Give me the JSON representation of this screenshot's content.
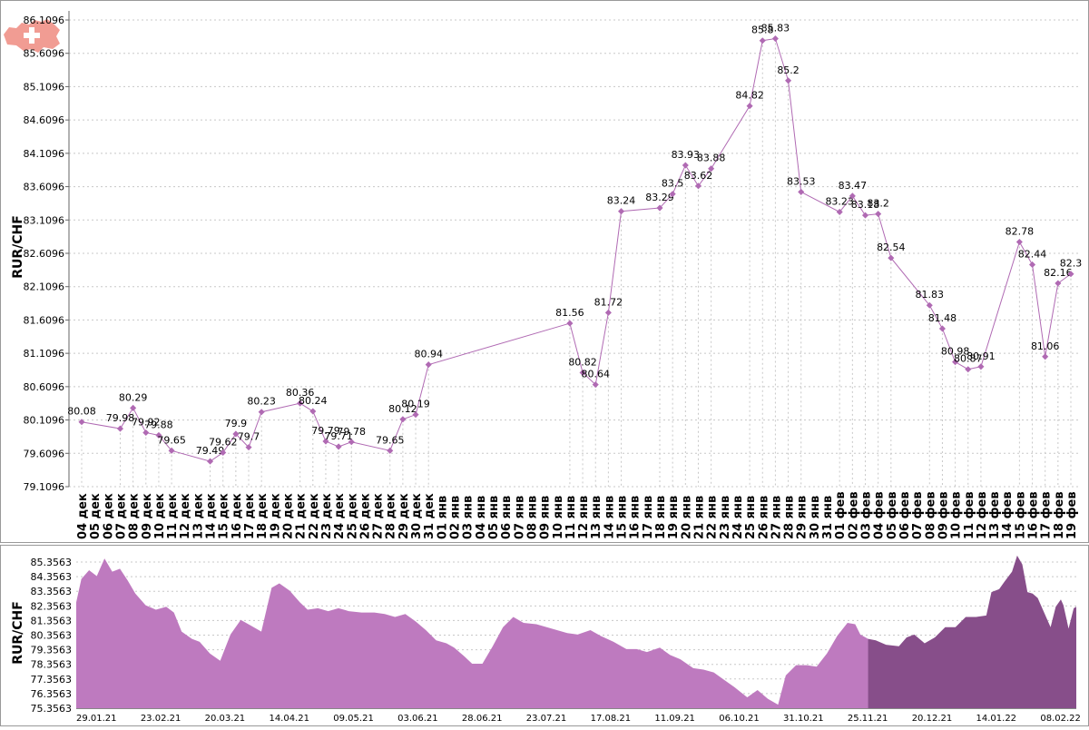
{
  "chart_data": [
    {
      "type": "line",
      "ylabel": "RUR/CHF",
      "yticks": [
        "79.1096",
        "79.6096",
        "80.1096",
        "80.6096",
        "81.1096",
        "81.6096",
        "82.1096",
        "82.6096",
        "83.1096",
        "83.6096",
        "84.1096",
        "84.6096",
        "85.1096",
        "85.6096",
        "86.1096"
      ],
      "ylim": [
        79.1096,
        86.1096
      ],
      "grid": true,
      "color": "#b06ab3",
      "x_labels": [
        "04 дек",
        "05 дек",
        "06 дек",
        "07 дек",
        "08 дек",
        "09 дек",
        "10 дек",
        "11 дек",
        "12 дек",
        "13 дек",
        "14 дек",
        "15 дек",
        "16 дек",
        "17 дек",
        "18 дек",
        "19 дек",
        "20 дек",
        "21 дек",
        "22 дек",
        "23 дек",
        "24 дек",
        "25 дек",
        "26 дек",
        "27 дек",
        "28 дек",
        "29 дек",
        "30 дек",
        "31 дек",
        "01 янв",
        "02 янв",
        "03 янв",
        "04 янв",
        "05 янв",
        "06 янв",
        "07 янв",
        "08 янв",
        "09 янв",
        "10 янв",
        "11 янв",
        "12 янв",
        "13 янв",
        "14 янв",
        "15 янв",
        "16 янв",
        "17 янв",
        "18 янв",
        "19 янв",
        "20 янв",
        "21 янв",
        "22 янв",
        "23 янв",
        "24 янв",
        "25 янв",
        "26 янв",
        "27 янв",
        "28 янв",
        "29 янв",
        "30 янв",
        "31 янв",
        "01 фев",
        "02 фев",
        "03 фев",
        "04 фев",
        "05 фев",
        "06 фев",
        "07 фев",
        "08 фев",
        "09 фев",
        "10 фев",
        "11 фев",
        "12 фев",
        "13 фев",
        "14 фев",
        "15 фев",
        "16 фев",
        "17 фев",
        "18 фев",
        "19 фев"
      ],
      "points": [
        {
          "x": "04 дек",
          "y": 80.08,
          "label": "80.08"
        },
        {
          "x": "07 дек",
          "y": 79.98,
          "label": "79.98"
        },
        {
          "x": "08 дек",
          "y": 80.29,
          "label": "80.29"
        },
        {
          "x": "09 дек",
          "y": 79.92,
          "label": "79.92"
        },
        {
          "x": "10 дек",
          "y": 79.88,
          "label": "79.88"
        },
        {
          "x": "11 дек",
          "y": 79.65,
          "label": "79.65"
        },
        {
          "x": "14 дек",
          "y": 79.49,
          "label": "79.49"
        },
        {
          "x": "15 дек",
          "y": 79.62,
          "label": "79.62"
        },
        {
          "x": "16 дек",
          "y": 79.9,
          "label": "79.9"
        },
        {
          "x": "17 дек",
          "y": 79.7,
          "label": "79.7"
        },
        {
          "x": "18 дек",
          "y": 80.23,
          "label": "80.23"
        },
        {
          "x": "21 дек",
          "y": 80.36,
          "label": "80.36"
        },
        {
          "x": "22 дек",
          "y": 80.24,
          "label": "80.24"
        },
        {
          "x": "23 дек",
          "y": 79.79,
          "label": "79.79"
        },
        {
          "x": "24 дек",
          "y": 79.71,
          "label": "79.71"
        },
        {
          "x": "25 дек",
          "y": 79.78,
          "label": "79.78"
        },
        {
          "x": "28 дек",
          "y": 79.65,
          "label": "79.65"
        },
        {
          "x": "29 дек",
          "y": 80.12,
          "label": "80.12"
        },
        {
          "x": "30 дек",
          "y": 80.19,
          "label": "80.19"
        },
        {
          "x": "31 дек",
          "y": 80.94,
          "label": "80.94"
        },
        {
          "x": "11 янв",
          "y": 81.56,
          "label": "81.56"
        },
        {
          "x": "12 янв",
          "y": 80.82,
          "label": "80.82"
        },
        {
          "x": "13 янв",
          "y": 80.64,
          "label": "80.64"
        },
        {
          "x": "14 янв",
          "y": 81.72,
          "label": "81.72"
        },
        {
          "x": "15 янв",
          "y": 83.24,
          "label": "83.24"
        },
        {
          "x": "18 янв",
          "y": 83.29,
          "label": "83.29"
        },
        {
          "x": "19 янв",
          "y": 83.5,
          "label": "83.5"
        },
        {
          "x": "20 янв",
          "y": 83.93,
          "label": "83.93"
        },
        {
          "x": "21 янв",
          "y": 83.62,
          "label": "83.62"
        },
        {
          "x": "22 янв",
          "y": 83.88,
          "label": "83.88"
        },
        {
          "x": "25 янв",
          "y": 84.82,
          "label": "84.82"
        },
        {
          "x": "26 янв",
          "y": 85.8,
          "label": "85.8"
        },
        {
          "x": "27 янв",
          "y": 85.83,
          "label": "85.83"
        },
        {
          "x": "28 янв",
          "y": 85.2,
          "label": "85.2"
        },
        {
          "x": "29 янв",
          "y": 83.53,
          "label": "83.53"
        },
        {
          "x": "01 фев",
          "y": 83.23,
          "label": "83.23"
        },
        {
          "x": "02 фев",
          "y": 83.47,
          "label": "83.47"
        },
        {
          "x": "03 фев",
          "y": 83.18,
          "label": "83.18"
        },
        {
          "x": "04 фев",
          "y": 83.2,
          "label": "83.2"
        },
        {
          "x": "05 фев",
          "y": 82.54,
          "label": "82.54"
        },
        {
          "x": "08 фев",
          "y": 81.83,
          "label": "81.83"
        },
        {
          "x": "09 фев",
          "y": 81.48,
          "label": "81.48"
        },
        {
          "x": "10 фев",
          "y": 80.98,
          "label": "80.98"
        },
        {
          "x": "11 фев",
          "y": 80.87,
          "label": "80.87"
        },
        {
          "x": "12 фев",
          "y": 80.91,
          "label": "80.91"
        },
        {
          "x": "15 фев",
          "y": 82.78,
          "label": "82.78"
        },
        {
          "x": "16 фев",
          "y": 82.44,
          "label": "82.44"
        },
        {
          "x": "17 фев",
          "y": 81.06,
          "label": "81.06"
        },
        {
          "x": "18 фев",
          "y": 82.16,
          "label": "82.16"
        },
        {
          "x": "19 фев",
          "y": 82.3,
          "label": "82.3"
        }
      ]
    },
    {
      "type": "area",
      "ylabel": "RUR/CHF",
      "yticks": [
        "75.3563",
        "76.3563",
        "77.3563",
        "78.3563",
        "79.3563",
        "80.3563",
        "81.3563",
        "82.3563",
        "83.3563",
        "84.3563",
        "85.3563"
      ],
      "ylim": [
        75.3563,
        85.8563
      ],
      "grid": true,
      "x_labels": [
        "29.01.21",
        "23.02.21",
        "20.03.21",
        "14.04.21",
        "09.05.21",
        "03.06.21",
        "28.06.21",
        "23.07.21",
        "17.08.21",
        "11.09.21",
        "06.10.21",
        "31.10.21",
        "25.11.21",
        "20.12.21",
        "14.01.22",
        "08.02.22"
      ],
      "colors": {
        "history": "#be7abf",
        "selected": "#874e8a"
      },
      "selected_from": "03.12.21",
      "series": [
        {
          "date": "29.01.21",
          "y": 82.6
        },
        {
          "date": "31.01.21",
          "y": 84.2
        },
        {
          "date": "03.02.21",
          "y": 84.8
        },
        {
          "date": "06.02.21",
          "y": 84.4
        },
        {
          "date": "09.02.21",
          "y": 85.6
        },
        {
          "date": "12.02.21",
          "y": 84.7
        },
        {
          "date": "15.02.21",
          "y": 84.9
        },
        {
          "date": "18.02.21",
          "y": 84.1
        },
        {
          "date": "21.02.21",
          "y": 83.2
        },
        {
          "date": "25.02.21",
          "y": 82.4
        },
        {
          "date": "01.03.21",
          "y": 82.1
        },
        {
          "date": "05.03.21",
          "y": 82.3
        },
        {
          "date": "08.03.21",
          "y": 81.9
        },
        {
          "date": "11.03.21",
          "y": 80.6
        },
        {
          "date": "15.03.21",
          "y": 80.1
        },
        {
          "date": "18.03.21",
          "y": 79.9
        },
        {
          "date": "22.03.21",
          "y": 79.1
        },
        {
          "date": "26.03.21",
          "y": 78.6
        },
        {
          "date": "30.03.21",
          "y": 80.4
        },
        {
          "date": "03.04.21",
          "y": 81.4
        },
        {
          "date": "07.04.21",
          "y": 81.0
        },
        {
          "date": "11.04.21",
          "y": 80.6
        },
        {
          "date": "15.04.21",
          "y": 83.6
        },
        {
          "date": "18.04.21",
          "y": 83.9
        },
        {
          "date": "22.04.21",
          "y": 83.4
        },
        {
          "date": "26.04.21",
          "y": 82.6
        },
        {
          "date": "29.04.21",
          "y": 82.1
        },
        {
          "date": "03.05.21",
          "y": 82.2
        },
        {
          "date": "07.05.21",
          "y": 82.0
        },
        {
          "date": "11.05.21",
          "y": 82.2
        },
        {
          "date": "15.05.21",
          "y": 82.0
        },
        {
          "date": "20.05.21",
          "y": 81.9
        },
        {
          "date": "25.05.21",
          "y": 81.9
        },
        {
          "date": "29.05.21",
          "y": 81.8
        },
        {
          "date": "02.06.21",
          "y": 81.6
        },
        {
          "date": "06.06.21",
          "y": 81.8
        },
        {
          "date": "10.06.21",
          "y": 81.3
        },
        {
          "date": "14.06.21",
          "y": 80.7
        },
        {
          "date": "18.06.21",
          "y": 80.0
        },
        {
          "date": "22.06.21",
          "y": 79.8
        },
        {
          "date": "25.06.21",
          "y": 79.5
        },
        {
          "date": "29.06.21",
          "y": 78.9
        },
        {
          "date": "02.07.21",
          "y": 78.4
        },
        {
          "date": "06.07.21",
          "y": 78.4
        },
        {
          "date": "10.07.21",
          "y": 79.6
        },
        {
          "date": "14.07.21",
          "y": 80.9
        },
        {
          "date": "18.07.21",
          "y": 81.6
        },
        {
          "date": "22.07.21",
          "y": 81.2
        },
        {
          "date": "27.07.21",
          "y": 81.1
        },
        {
          "date": "31.07.21",
          "y": 80.9
        },
        {
          "date": "04.08.21",
          "y": 80.7
        },
        {
          "date": "08.08.21",
          "y": 80.5
        },
        {
          "date": "12.08.21",
          "y": 80.4
        },
        {
          "date": "17.08.21",
          "y": 80.7
        },
        {
          "date": "21.08.21",
          "y": 80.3
        },
        {
          "date": "26.08.21",
          "y": 79.9
        },
        {
          "date": "31.08.21",
          "y": 79.4
        },
        {
          "date": "04.09.21",
          "y": 79.4
        },
        {
          "date": "08.09.21",
          "y": 79.2
        },
        {
          "date": "13.09.21",
          "y": 79.5
        },
        {
          "date": "17.09.21",
          "y": 79.0
        },
        {
          "date": "21.09.21",
          "y": 78.7
        },
        {
          "date": "26.09.21",
          "y": 78.1
        },
        {
          "date": "30.09.21",
          "y": 78.0
        },
        {
          "date": "04.10.21",
          "y": 77.8
        },
        {
          "date": "08.10.21",
          "y": 77.3
        },
        {
          "date": "12.10.21",
          "y": 76.8
        },
        {
          "date": "17.10.21",
          "y": 76.1
        },
        {
          "date": "21.10.21",
          "y": 76.6
        },
        {
          "date": "25.10.21",
          "y": 76.0
        },
        {
          "date": "29.10.21",
          "y": 75.6
        },
        {
          "date": "01.11.21",
          "y": 77.6
        },
        {
          "date": "05.11.21",
          "y": 78.3
        },
        {
          "date": "09.11.21",
          "y": 78.3
        },
        {
          "date": "13.11.21",
          "y": 78.2
        },
        {
          "date": "17.11.21",
          "y": 79.1
        },
        {
          "date": "21.11.21",
          "y": 80.3
        },
        {
          "date": "25.11.21",
          "y": 81.2
        },
        {
          "date": "28.11.21",
          "y": 81.1
        },
        {
          "date": "30.11.21",
          "y": 80.4
        },
        {
          "date": "03.12.21",
          "y": 80.1
        },
        {
          "date": "06.12.21",
          "y": 80.0
        },
        {
          "date": "10.12.21",
          "y": 79.7
        },
        {
          "date": "15.12.21",
          "y": 79.6
        },
        {
          "date": "18.12.21",
          "y": 80.2
        },
        {
          "date": "21.12.21",
          "y": 80.4
        },
        {
          "date": "25.12.21",
          "y": 79.8
        },
        {
          "date": "29.12.21",
          "y": 80.2
        },
        {
          "date": "02.01.22",
          "y": 80.9
        },
        {
          "date": "06.01.22",
          "y": 80.9
        },
        {
          "date": "10.01.22",
          "y": 81.6
        },
        {
          "date": "14.01.22",
          "y": 81.6
        },
        {
          "date": "18.01.22",
          "y": 81.7
        },
        {
          "date": "20.01.22",
          "y": 83.3
        },
        {
          "date": "23.01.22",
          "y": 83.5
        },
        {
          "date": "25.01.22",
          "y": 84.0
        },
        {
          "date": "28.01.22",
          "y": 84.7
        },
        {
          "date": "30.01.22",
          "y": 85.8
        },
        {
          "date": "01.02.22",
          "y": 85.2
        },
        {
          "date": "03.02.22",
          "y": 83.3
        },
        {
          "date": "05.02.22",
          "y": 83.2
        },
        {
          "date": "07.02.22",
          "y": 82.9
        },
        {
          "date": "09.02.22",
          "y": 82.1
        },
        {
          "date": "11.02.22",
          "y": 81.3
        },
        {
          "date": "12.02.22",
          "y": 80.9
        },
        {
          "date": "14.02.22",
          "y": 82.3
        },
        {
          "date": "16.02.22",
          "y": 82.8
        },
        {
          "date": "17.02.22",
          "y": 82.4
        },
        {
          "date": "19.02.22",
          "y": 80.8
        },
        {
          "date": "21.02.22",
          "y": 82.2
        },
        {
          "date": "22.02.22",
          "y": 82.3
        }
      ]
    }
  ],
  "icon": "switzerland-flag-map-icon",
  "colors": {
    "line": "#b06ab3",
    "grid": "#c8c8c8",
    "border": "#999999"
  }
}
